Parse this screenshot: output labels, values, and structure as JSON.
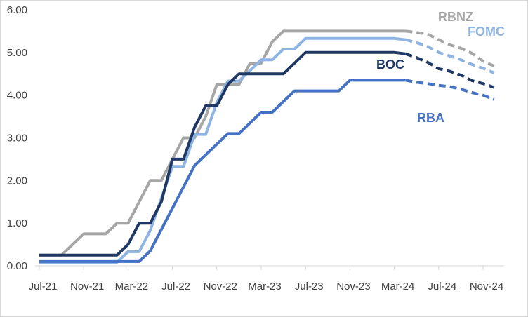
{
  "chart_data": {
    "type": "line",
    "title": "",
    "xlabel": "",
    "ylabel": "",
    "ylim": [
      0,
      6
    ],
    "y_ticks": [
      "0.00",
      "1.00",
      "2.00",
      "3.00",
      "4.00",
      "5.00",
      "6.00"
    ],
    "x_ticks": [
      "Jul-21",
      "Nov-21",
      "Mar-22",
      "Jul-22",
      "Nov-22",
      "Mar-23",
      "Jul-23",
      "Nov-23",
      "Mar-24",
      "Jul-24",
      "Nov-24"
    ],
    "grid": false,
    "legend": "direct labels",
    "series": [
      {
        "name": "RBNZ",
        "color": "#a6a6a6",
        "actual": [
          [
            "Jul-21",
            0.25
          ],
          [
            "Aug-21",
            0.25
          ],
          [
            "Sep-21",
            0.25
          ],
          [
            "Oct-21",
            0.5
          ],
          [
            "Nov-21",
            0.75
          ],
          [
            "Dec-21",
            0.75
          ],
          [
            "Jan-22",
            0.75
          ],
          [
            "Feb-22",
            1.0
          ],
          [
            "Mar-22",
            1.0
          ],
          [
            "Apr-22",
            1.5
          ],
          [
            "May-22",
            2.0
          ],
          [
            "Jun-22",
            2.0
          ],
          [
            "Jul-22",
            2.5
          ],
          [
            "Aug-22",
            3.0
          ],
          [
            "Sep-22",
            3.0
          ],
          [
            "Oct-22",
            3.5
          ],
          [
            "Nov-22",
            4.25
          ],
          [
            "Dec-22",
            4.25
          ],
          [
            "Jan-23",
            4.25
          ],
          [
            "Feb-23",
            4.75
          ],
          [
            "Mar-23",
            4.75
          ],
          [
            "Apr-23",
            5.25
          ],
          [
            "May-23",
            5.5
          ],
          [
            "Jun-23",
            5.5
          ],
          [
            "Jul-23",
            5.5
          ],
          [
            "Aug-23",
            5.5
          ],
          [
            "Sep-23",
            5.5
          ],
          [
            "Oct-23",
            5.5
          ],
          [
            "Nov-23",
            5.5
          ],
          [
            "Dec-23",
            5.5
          ],
          [
            "Jan-24",
            5.5
          ],
          [
            "Feb-24",
            5.5
          ],
          [
            "Mar-24",
            5.5
          ],
          [
            "Apr-24",
            5.5
          ]
        ],
        "projected": [
          [
            "Apr-24",
            5.5
          ],
          [
            "May-24",
            5.47
          ],
          [
            "Jun-24",
            5.43
          ],
          [
            "Jul-24",
            5.3
          ],
          [
            "Aug-24",
            5.18
          ],
          [
            "Sep-24",
            5.1
          ],
          [
            "Oct-24",
            4.98
          ],
          [
            "Nov-24",
            4.8
          ],
          [
            "Dec-24",
            4.68
          ]
        ]
      },
      {
        "name": "FOMC",
        "color": "#8eb4e3",
        "actual": [
          [
            "Jul-21",
            0.08
          ],
          [
            "Aug-21",
            0.08
          ],
          [
            "Sep-21",
            0.08
          ],
          [
            "Oct-21",
            0.08
          ],
          [
            "Nov-21",
            0.08
          ],
          [
            "Dec-21",
            0.08
          ],
          [
            "Jan-22",
            0.08
          ],
          [
            "Feb-22",
            0.08
          ],
          [
            "Mar-22",
            0.33
          ],
          [
            "Apr-22",
            0.33
          ],
          [
            "May-22",
            0.83
          ],
          [
            "Jun-22",
            1.58
          ],
          [
            "Jul-22",
            2.33
          ],
          [
            "Aug-22",
            2.33
          ],
          [
            "Sep-22",
            3.08
          ],
          [
            "Oct-22",
            3.08
          ],
          [
            "Nov-22",
            3.83
          ],
          [
            "Dec-22",
            4.33
          ],
          [
            "Jan-23",
            4.33
          ],
          [
            "Feb-23",
            4.58
          ],
          [
            "Mar-23",
            4.83
          ],
          [
            "Apr-23",
            4.83
          ],
          [
            "May-23",
            5.08
          ],
          [
            "Jun-23",
            5.08
          ],
          [
            "Jul-23",
            5.33
          ],
          [
            "Aug-23",
            5.33
          ],
          [
            "Sep-23",
            5.33
          ],
          [
            "Oct-23",
            5.33
          ],
          [
            "Nov-23",
            5.33
          ],
          [
            "Dec-23",
            5.33
          ],
          [
            "Jan-24",
            5.33
          ],
          [
            "Feb-24",
            5.33
          ],
          [
            "Mar-24",
            5.33
          ],
          [
            "Apr-24",
            5.3
          ]
        ],
        "projected": [
          [
            "Apr-24",
            5.3
          ],
          [
            "May-24",
            5.23
          ],
          [
            "Jun-24",
            5.14
          ],
          [
            "Jul-24",
            5.0
          ],
          [
            "Aug-24",
            4.92
          ],
          [
            "Sep-24",
            4.83
          ],
          [
            "Oct-24",
            4.72
          ],
          [
            "Nov-24",
            4.63
          ],
          [
            "Dec-24",
            4.52
          ]
        ]
      },
      {
        "name": "BOC",
        "color": "#1f3864",
        "actual": [
          [
            "Jul-21",
            0.25
          ],
          [
            "Aug-21",
            0.25
          ],
          [
            "Sep-21",
            0.25
          ],
          [
            "Oct-21",
            0.25
          ],
          [
            "Nov-21",
            0.25
          ],
          [
            "Dec-21",
            0.25
          ],
          [
            "Jan-22",
            0.25
          ],
          [
            "Feb-22",
            0.25
          ],
          [
            "Mar-22",
            0.5
          ],
          [
            "Apr-22",
            1.0
          ],
          [
            "May-22",
            1.0
          ],
          [
            "Jun-22",
            1.5
          ],
          [
            "Jul-22",
            2.5
          ],
          [
            "Aug-22",
            2.5
          ],
          [
            "Sep-22",
            3.25
          ],
          [
            "Oct-22",
            3.75
          ],
          [
            "Nov-22",
            3.75
          ],
          [
            "Dec-22",
            4.25
          ],
          [
            "Jan-23",
            4.5
          ],
          [
            "Feb-23",
            4.5
          ],
          [
            "Mar-23",
            4.5
          ],
          [
            "Apr-23",
            4.5
          ],
          [
            "May-23",
            4.5
          ],
          [
            "Jun-23",
            4.75
          ],
          [
            "Jul-23",
            5.0
          ],
          [
            "Aug-23",
            5.0
          ],
          [
            "Sep-23",
            5.0
          ],
          [
            "Oct-23",
            5.0
          ],
          [
            "Nov-23",
            5.0
          ],
          [
            "Dec-23",
            5.0
          ],
          [
            "Jan-24",
            5.0
          ],
          [
            "Feb-24",
            5.0
          ],
          [
            "Mar-24",
            5.0
          ],
          [
            "Apr-24",
            4.97
          ]
        ],
        "projected": [
          [
            "Apr-24",
            4.97
          ],
          [
            "May-24",
            4.88
          ],
          [
            "Jun-24",
            4.77
          ],
          [
            "Jul-24",
            4.62
          ],
          [
            "Aug-24",
            4.56
          ],
          [
            "Sep-24",
            4.47
          ],
          [
            "Oct-24",
            4.34
          ],
          [
            "Nov-24",
            4.27
          ],
          [
            "Dec-24",
            4.18
          ]
        ]
      },
      {
        "name": "RBA",
        "color": "#4472c4",
        "actual": [
          [
            "Jul-21",
            0.1
          ],
          [
            "Aug-21",
            0.1
          ],
          [
            "Sep-21",
            0.1
          ],
          [
            "Oct-21",
            0.1
          ],
          [
            "Nov-21",
            0.1
          ],
          [
            "Dec-21",
            0.1
          ],
          [
            "Jan-22",
            0.1
          ],
          [
            "Feb-22",
            0.1
          ],
          [
            "Mar-22",
            0.1
          ],
          [
            "Apr-22",
            0.1
          ],
          [
            "May-22",
            0.35
          ],
          [
            "Jun-22",
            0.85
          ],
          [
            "Jul-22",
            1.35
          ],
          [
            "Aug-22",
            1.85
          ],
          [
            "Sep-22",
            2.35
          ],
          [
            "Oct-22",
            2.6
          ],
          [
            "Nov-22",
            2.85
          ],
          [
            "Dec-22",
            3.1
          ],
          [
            "Jan-23",
            3.1
          ],
          [
            "Feb-23",
            3.35
          ],
          [
            "Mar-23",
            3.6
          ],
          [
            "Apr-23",
            3.6
          ],
          [
            "May-23",
            3.85
          ],
          [
            "Jun-23",
            4.1
          ],
          [
            "Jul-23",
            4.1
          ],
          [
            "Aug-23",
            4.1
          ],
          [
            "Sep-23",
            4.1
          ],
          [
            "Oct-23",
            4.1
          ],
          [
            "Nov-23",
            4.35
          ],
          [
            "Dec-23",
            4.35
          ],
          [
            "Jan-24",
            4.35
          ],
          [
            "Feb-24",
            4.35
          ],
          [
            "Mar-24",
            4.35
          ],
          [
            "Apr-24",
            4.35
          ]
        ],
        "projected": [
          [
            "Apr-24",
            4.35
          ],
          [
            "May-24",
            4.3
          ],
          [
            "Jun-24",
            4.27
          ],
          [
            "Jul-24",
            4.23
          ],
          [
            "Aug-24",
            4.2
          ],
          [
            "Sep-24",
            4.14
          ],
          [
            "Oct-24",
            4.06
          ],
          [
            "Nov-24",
            4.0
          ],
          [
            "Dec-24",
            3.9
          ]
        ]
      }
    ]
  }
}
